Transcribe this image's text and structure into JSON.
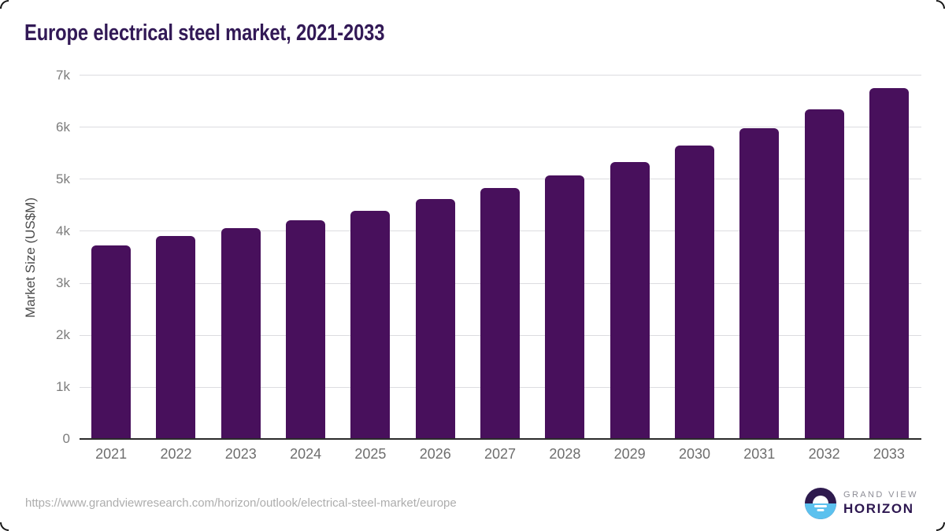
{
  "page": {
    "background": "#ffffff"
  },
  "colors": {
    "title": "#321956",
    "bar": "#48105c",
    "axis_line": "#2b2b2b",
    "gridline": "#dcdce0",
    "logo_purple": "#2e1a4e",
    "logo_blue": "#5cc1ee",
    "logo_horizon_text": "#2d1750"
  },
  "chart_data": {
    "type": "bar",
    "title": "Europe electrical steel market, 2021-2033",
    "categories": [
      "2021",
      "2022",
      "2023",
      "2024",
      "2025",
      "2026",
      "2027",
      "2028",
      "2029",
      "2030",
      "2031",
      "2032",
      "2033"
    ],
    "values": [
      3740,
      3910,
      4060,
      4220,
      4400,
      4620,
      4840,
      5080,
      5340,
      5650,
      5980,
      6350,
      6760
    ],
    "xlabel": "",
    "ylabel": "Market Size (US$M)",
    "ylim": [
      0,
      7000
    ],
    "yticks": [
      {
        "value": 0,
        "label": "0"
      },
      {
        "value": 1000,
        "label": "1k"
      },
      {
        "value": 2000,
        "label": "2k"
      },
      {
        "value": 3000,
        "label": "3k"
      },
      {
        "value": 4000,
        "label": "4k"
      },
      {
        "value": 5000,
        "label": "5k"
      },
      {
        "value": 6000,
        "label": "6k"
      },
      {
        "value": 7000,
        "label": "7k"
      }
    ],
    "grid": "horizontal",
    "legend_position": "none",
    "bar_color": "#48105c"
  },
  "footer": {
    "source_url": "https://www.grandviewresearch.com/horizon/outlook/electrical-steel-market/europe",
    "logo": {
      "brand_top": "GRAND VIEW",
      "brand_bottom": "HORIZON"
    }
  }
}
